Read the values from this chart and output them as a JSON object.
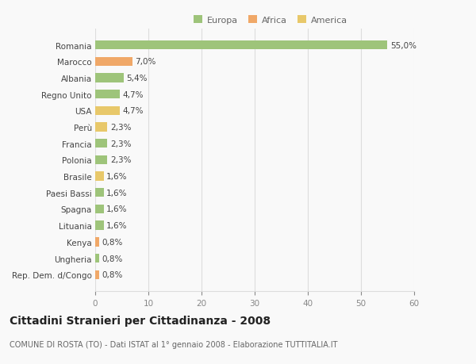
{
  "categories": [
    "Rep. Dem. d/Congo",
    "Ungheria",
    "Kenya",
    "Lituania",
    "Spagna",
    "Paesi Bassi",
    "Brasile",
    "Polonia",
    "Francia",
    "Perù",
    "USA",
    "Regno Unito",
    "Albania",
    "Marocco",
    "Romania"
  ],
  "values": [
    0.8,
    0.8,
    0.8,
    1.6,
    1.6,
    1.6,
    1.6,
    2.3,
    2.3,
    2.3,
    4.7,
    4.7,
    5.4,
    7.0,
    55.0
  ],
  "labels": [
    "0,8%",
    "0,8%",
    "0,8%",
    "1,6%",
    "1,6%",
    "1,6%",
    "1,6%",
    "2,3%",
    "2,3%",
    "2,3%",
    "4,7%",
    "4,7%",
    "5,4%",
    "7,0%",
    "55,0%"
  ],
  "colors": [
    "#f0a868",
    "#9ec47a",
    "#f0a868",
    "#9ec47a",
    "#9ec47a",
    "#9ec47a",
    "#e8c86a",
    "#9ec47a",
    "#9ec47a",
    "#e8c86a",
    "#e8c86a",
    "#9ec47a",
    "#9ec47a",
    "#f0a868",
    "#9ec47a"
  ],
  "legend_labels": [
    "Europa",
    "Africa",
    "America"
  ],
  "legend_colors": [
    "#9ec47a",
    "#f0a868",
    "#e8c86a"
  ],
  "title": "Cittadini Stranieri per Cittadinanza - 2008",
  "subtitle": "COMUNE DI ROSTA (TO) - Dati ISTAT al 1° gennaio 2008 - Elaborazione TUTTITALIA.IT",
  "xlim": [
    0,
    60
  ],
  "xticks": [
    0,
    10,
    20,
    30,
    40,
    50,
    60
  ],
  "bg_color": "#f9f9f9",
  "grid_color": "#dddddd",
  "bar_height": 0.55,
  "label_fontsize": 7.5,
  "ytick_fontsize": 7.5,
  "xtick_fontsize": 7.5,
  "title_fontsize": 10,
  "subtitle_fontsize": 7,
  "legend_fontsize": 8
}
